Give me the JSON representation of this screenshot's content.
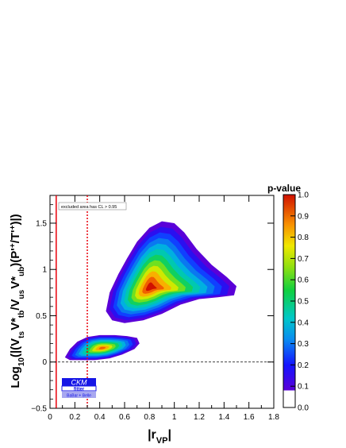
{
  "chart_data": {
    "type": "heatmap",
    "title": "",
    "xlabel": "|r_VP|",
    "ylabel": "Log10(|(Vts V*tb/Vus V*ub)(P'+/T'+)|)",
    "xlim": [
      0,
      1.8
    ],
    "ylim": [
      -0.5,
      1.8
    ],
    "x_ticks": [
      0,
      0.2,
      0.4,
      0.6,
      0.8,
      1.0,
      1.2,
      1.4,
      1.6,
      1.8
    ],
    "y_ticks": [
      -0.5,
      0,
      0.5,
      1.0,
      1.5
    ],
    "x_tick_labels": [
      "0",
      "0.2",
      "0.4",
      "0.6",
      "0.8",
      "1",
      "1.2",
      "1.4",
      "1.6",
      "1.8"
    ],
    "y_tick_labels": [
      "−0.5",
      "0",
      "0.5",
      "1",
      "1.5"
    ],
    "colorbar": {
      "label": "p-value",
      "ticks": [
        0.0,
        0.1,
        0.2,
        0.3,
        0.4,
        0.5,
        0.6,
        0.7,
        0.8,
        0.9,
        1.0
      ],
      "tick_labels": [
        "0.0",
        "0.1",
        "0.2",
        "0.3",
        "0.4",
        "0.5",
        "0.6",
        "0.7",
        "0.8",
        "0.9",
        "1.0"
      ]
    },
    "regions": [
      {
        "peak_x": 0.8,
        "peak_y": 0.8,
        "peak_p": 1.0,
        "outline": [
          [
            0.45,
            0.55
          ],
          [
            0.48,
            0.75
          ],
          [
            0.55,
            0.95
          ],
          [
            0.62,
            1.12
          ],
          [
            0.7,
            1.3
          ],
          [
            0.8,
            1.45
          ],
          [
            0.9,
            1.52
          ],
          [
            1.0,
            1.5
          ],
          [
            1.08,
            1.4
          ],
          [
            1.18,
            1.22
          ],
          [
            1.3,
            1.05
          ],
          [
            1.42,
            0.92
          ],
          [
            1.5,
            0.82
          ],
          [
            1.48,
            0.72
          ],
          [
            1.35,
            0.7
          ],
          [
            1.2,
            0.68
          ],
          [
            1.05,
            0.62
          ],
          [
            0.9,
            0.52
          ],
          [
            0.75,
            0.45
          ],
          [
            0.6,
            0.42
          ],
          [
            0.5,
            0.45
          ]
        ]
      },
      {
        "peak_x": 0.42,
        "peak_y": 0.15,
        "peak_p": 0.95,
        "outline": [
          [
            0.12,
            0.05
          ],
          [
            0.16,
            0.14
          ],
          [
            0.22,
            0.22
          ],
          [
            0.3,
            0.27
          ],
          [
            0.4,
            0.29
          ],
          [
            0.52,
            0.29
          ],
          [
            0.62,
            0.28
          ],
          [
            0.7,
            0.26
          ],
          [
            0.72,
            0.2
          ],
          [
            0.68,
            0.14
          ],
          [
            0.58,
            0.08
          ],
          [
            0.48,
            0.04
          ],
          [
            0.36,
            0.02
          ],
          [
            0.25,
            0.02
          ],
          [
            0.16,
            0.02
          ]
        ]
      }
    ],
    "vertical_lines": [
      {
        "x": 0.05,
        "style": "solid",
        "color": "#e8000b"
      },
      {
        "x": 0.3,
        "style": "dotted",
        "color": "#e8000b"
      }
    ],
    "horizontal_lines": [
      {
        "y": 0,
        "style": "dashed",
        "color": "#000000"
      }
    ]
  },
  "annotations": {
    "excluded_label": "excluded area has CL > 0.95",
    "logo_text": "CKM",
    "logo_subtext": "fitter",
    "logo_caption": "BaBar + Belle"
  },
  "colors": {
    "ckm_blue": "#1515e6",
    "caption_bg": "#a8a8f0"
  }
}
